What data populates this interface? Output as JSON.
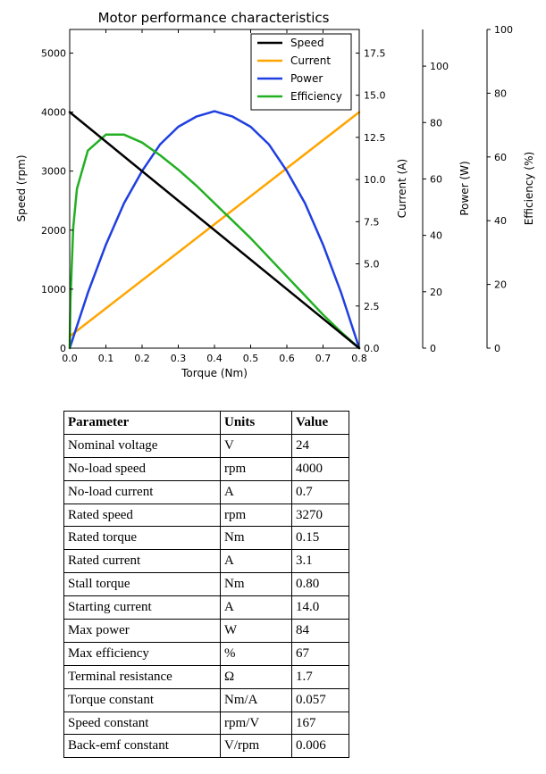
{
  "chart_data": {
    "type": "line",
    "title": "Motor performance characteristics",
    "xlabel": "Torque (Nm)",
    "xlim": [
      0,
      0.8
    ],
    "x_ticks": [
      "0.0",
      "0.1",
      "0.2",
      "0.3",
      "0.4",
      "0.5",
      "0.6",
      "0.7",
      "0.8"
    ],
    "grid": false,
    "legend_position": "top-right",
    "axes": {
      "speed": {
        "label": "Speed (rpm)",
        "lim": [
          0,
          5400
        ],
        "ticks": [
          "0",
          "1000",
          "2000",
          "3000",
          "4000",
          "5000"
        ]
      },
      "current": {
        "label": "Current (A)",
        "lim": [
          0,
          18.9
        ],
        "ticks": [
          "0.0",
          "2.5",
          "5.0",
          "7.5",
          "10.0",
          "12.5",
          "15.0",
          "17.5"
        ]
      },
      "power": {
        "label": "Power (W)",
        "lim": [
          0,
          113
        ],
        "ticks": [
          "0",
          "20",
          "40",
          "60",
          "80",
          "100"
        ]
      },
      "efficiency": {
        "label": "Efficiency (%)",
        "lim": [
          0,
          100
        ],
        "ticks": [
          "0",
          "20",
          "40",
          "60",
          "80",
          "100"
        ]
      }
    },
    "series": [
      {
        "name": "Speed",
        "axis": "speed",
        "color": "#000000",
        "x": [
          0,
          0.8
        ],
        "values": [
          4000,
          0
        ]
      },
      {
        "name": "Current",
        "axis": "current",
        "color": "#ffa500",
        "x": [
          0,
          0.8
        ],
        "values": [
          0.7,
          14.0
        ]
      },
      {
        "name": "Power",
        "axis": "power",
        "color": "#1f3fe0",
        "x": [
          0,
          0.05,
          0.1,
          0.15,
          0.2,
          0.25,
          0.3,
          0.35,
          0.4,
          0.45,
          0.5,
          0.55,
          0.6,
          0.65,
          0.7,
          0.75,
          0.8
        ],
        "values": [
          0,
          19.6,
          36.7,
          51.4,
          62.8,
          72.3,
          78.5,
          82.1,
          84,
          82.1,
          78.5,
          72.3,
          62.8,
          51.4,
          36.7,
          19.6,
          0
        ]
      },
      {
        "name": "Efficiency",
        "axis": "efficiency",
        "color": "#22b022",
        "x": [
          0,
          0.002,
          0.01,
          0.02,
          0.05,
          0.1,
          0.15,
          0.2,
          0.25,
          0.3,
          0.35,
          0.4,
          0.45,
          0.5,
          0.55,
          0.6,
          0.65,
          0.7,
          0.75,
          0.8
        ],
        "values": [
          0,
          15,
          38,
          50,
          62,
          67,
          67,
          64.5,
          60.5,
          56,
          51,
          45.5,
          40,
          34.5,
          28.5,
          22.5,
          16.5,
          10.5,
          5,
          0
        ]
      }
    ]
  },
  "table": {
    "headers": [
      "Parameter",
      "Units",
      "Value"
    ],
    "rows": [
      [
        "Nominal voltage",
        "V",
        "24"
      ],
      [
        "No-load speed",
        "rpm",
        "4000"
      ],
      [
        "No-load current",
        "A",
        "0.7"
      ],
      [
        "Rated speed",
        "rpm",
        "3270"
      ],
      [
        "Rated torque",
        "Nm",
        "0.15"
      ],
      [
        "Rated current",
        "A",
        "3.1"
      ],
      [
        "Stall torque",
        "Nm",
        "0.80"
      ],
      [
        "Starting current",
        "A",
        "14.0"
      ],
      [
        "Max power",
        "W",
        "84"
      ],
      [
        "Max efficiency",
        "%",
        "67"
      ],
      [
        "Terminal resistance",
        "Ω",
        "1.7"
      ],
      [
        "Torque constant",
        "Nm/A",
        "0.057"
      ],
      [
        "Speed constant",
        "rpm/V",
        "167"
      ],
      [
        "Back-emf constant",
        "V/rpm",
        "0.006"
      ]
    ]
  }
}
